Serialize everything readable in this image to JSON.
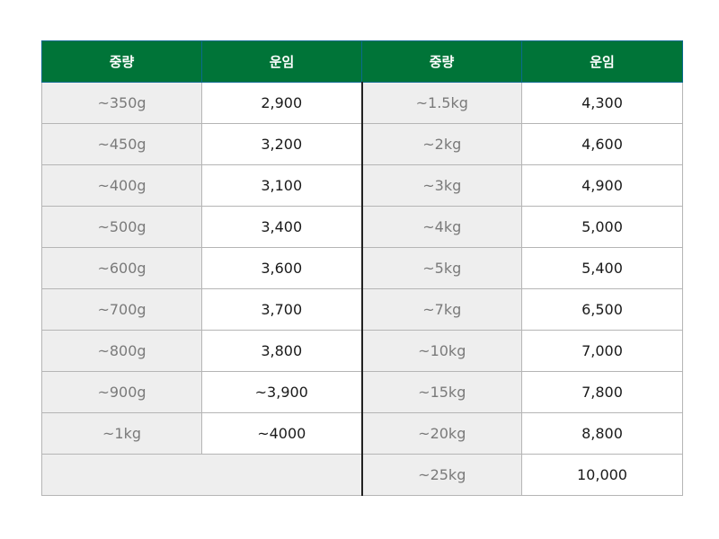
{
  "headers": [
    "중량",
    "운임",
    "중량",
    "운임"
  ],
  "rows": [
    {
      "w1": "~350g",
      "r1": "2,900",
      "w2": "~1.5kg",
      "r2": "4,300"
    },
    {
      "w1": "~450g",
      "r1": "3,200",
      "w2": "~2kg",
      "r2": "4,600"
    },
    {
      "w1": "~400g",
      "r1": "3,100",
      "w2": "~3kg",
      "r2": "4,900"
    },
    {
      "w1": "~500g",
      "r1": "3,400",
      "w2": "~4kg",
      "r2": "5,000"
    },
    {
      "w1": "~600g",
      "r1": "3,600",
      "w2": "~5kg",
      "r2": "5,400"
    },
    {
      "w1": "~700g",
      "r1": "3,700",
      "w2": "~7kg",
      "r2": "6,500"
    },
    {
      "w1": "~800g",
      "r1": "3,800",
      "w2": "~10kg",
      "r2": "7,000"
    },
    {
      "w1": "~900g",
      "r1": "~3,900",
      "w2": "~15kg",
      "r2": "7,800"
    },
    {
      "w1": "~1kg",
      "r1": "~4000",
      "w2": "~20kg",
      "r2": "8,800"
    },
    {
      "w1": "",
      "r1": "",
      "w2": "~25kg",
      "r2": "10,000"
    }
  ]
}
